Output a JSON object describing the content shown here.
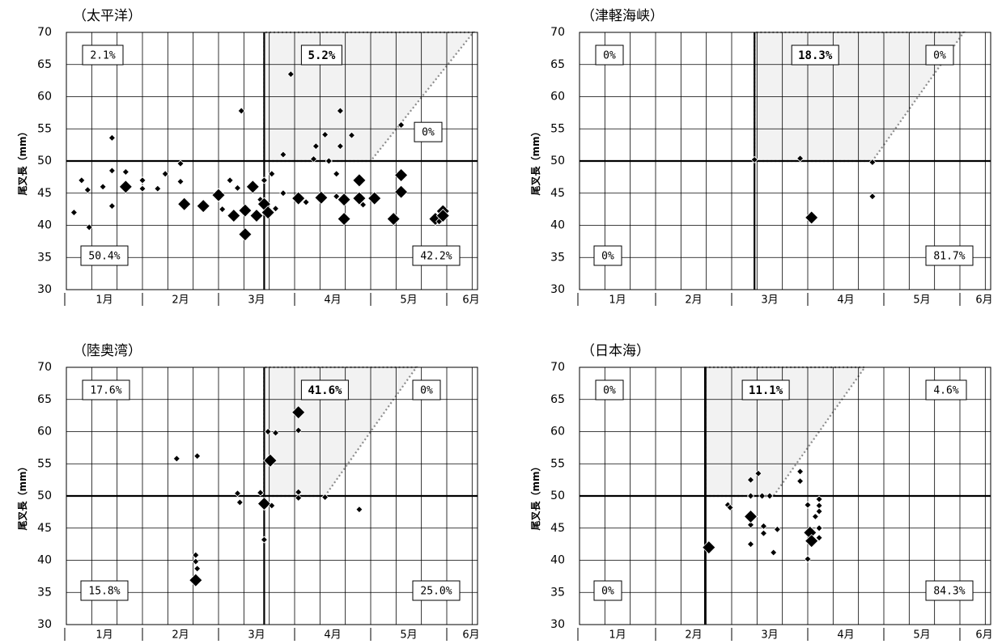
{
  "chart_data": [
    {
      "type": "scatter",
      "title": "（太平洋）",
      "ylabel": "尾叉長（mm）",
      "ylim": [
        30,
        70
      ],
      "yticks": [
        30,
        35,
        40,
        45,
        50,
        55,
        60,
        65,
        70
      ],
      "x_categories": [
        "1月",
        "2月",
        "3月",
        "4月",
        "5月",
        "6月"
      ],
      "xlim": [
        0,
        5.4
      ],
      "threshold_x": 2.6,
      "threshold_y": 50,
      "annotations": [
        {
          "text": "2.1%",
          "quadrant": "top-left",
          "bold": false
        },
        {
          "text": "5.2%",
          "quadrant": "top-middle",
          "bold": true
        },
        {
          "text": "0%",
          "quadrant": "top-right",
          "bold": false
        },
        {
          "text": "50.4%",
          "quadrant": "bottom-left",
          "bold": false
        },
        {
          "text": "42.2%",
          "quadrant": "bottom-right",
          "bold": false
        }
      ],
      "shaded_region": [
        [
          2.6,
          50
        ],
        [
          4.0,
          50
        ],
        [
          5.35,
          70
        ],
        [
          2.6,
          70
        ]
      ],
      "points": [
        {
          "x": 0.1,
          "y": 42.0,
          "s": 1
        },
        {
          "x": 0.2,
          "y": 47.0,
          "s": 1
        },
        {
          "x": 0.28,
          "y": 45.5,
          "s": 1
        },
        {
          "x": 0.3,
          "y": 39.7,
          "s": 1
        },
        {
          "x": 0.48,
          "y": 46.0,
          "s": 1
        },
        {
          "x": 0.6,
          "y": 53.6,
          "s": 1
        },
        {
          "x": 0.6,
          "y": 48.5,
          "s": 1
        },
        {
          "x": 0.6,
          "y": 43.0,
          "s": 1
        },
        {
          "x": 0.78,
          "y": 48.3,
          "s": 1
        },
        {
          "x": 0.78,
          "y": 46.0,
          "s": 2
        },
        {
          "x": 1.0,
          "y": 47.0,
          "s": 1
        },
        {
          "x": 1.0,
          "y": 45.7,
          "s": 1
        },
        {
          "x": 1.2,
          "y": 45.7,
          "s": 1
        },
        {
          "x": 1.3,
          "y": 48.0,
          "s": 1
        },
        {
          "x": 1.5,
          "y": 49.6,
          "s": 1
        },
        {
          "x": 1.5,
          "y": 46.8,
          "s": 1
        },
        {
          "x": 1.55,
          "y": 43.3,
          "s": 2
        },
        {
          "x": 1.8,
          "y": 43.0,
          "s": 2
        },
        {
          "x": 2.0,
          "y": 44.7,
          "s": 2
        },
        {
          "x": 2.05,
          "y": 42.5,
          "s": 1
        },
        {
          "x": 2.15,
          "y": 47.0,
          "s": 1
        },
        {
          "x": 2.2,
          "y": 41.5,
          "s": 2
        },
        {
          "x": 2.25,
          "y": 45.8,
          "s": 1
        },
        {
          "x": 2.3,
          "y": 57.8,
          "s": 1
        },
        {
          "x": 2.35,
          "y": 42.3,
          "s": 2
        },
        {
          "x": 2.35,
          "y": 38.6,
          "s": 2
        },
        {
          "x": 2.45,
          "y": 46.0,
          "s": 2
        },
        {
          "x": 2.5,
          "y": 41.5,
          "s": 2
        },
        {
          "x": 2.55,
          "y": 44.0,
          "s": 1
        },
        {
          "x": 2.6,
          "y": 43.3,
          "s": 2
        },
        {
          "x": 2.6,
          "y": 47.0,
          "s": 1
        },
        {
          "x": 2.65,
          "y": 42.0,
          "s": 2
        },
        {
          "x": 2.7,
          "y": 48.0,
          "s": 1
        },
        {
          "x": 2.75,
          "y": 42.6,
          "s": 1
        },
        {
          "x": 2.85,
          "y": 51.0,
          "s": 1
        },
        {
          "x": 2.85,
          "y": 45.0,
          "s": 1
        },
        {
          "x": 2.95,
          "y": 63.5,
          "s": 1
        },
        {
          "x": 3.05,
          "y": 44.2,
          "s": 2
        },
        {
          "x": 3.15,
          "y": 43.6,
          "s": 1
        },
        {
          "x": 3.25,
          "y": 50.3,
          "s": 1
        },
        {
          "x": 3.28,
          "y": 52.3,
          "s": 1
        },
        {
          "x": 3.35,
          "y": 44.3,
          "s": 2
        },
        {
          "x": 3.4,
          "y": 54.1,
          "s": 1
        },
        {
          "x": 3.45,
          "y": 50.0,
          "s": 1
        },
        {
          "x": 3.5,
          "y": 65.6,
          "s": 1
        },
        {
          "x": 3.55,
          "y": 48.0,
          "s": 1
        },
        {
          "x": 3.55,
          "y": 44.5,
          "s": 1
        },
        {
          "x": 3.6,
          "y": 52.3,
          "s": 1
        },
        {
          "x": 3.6,
          "y": 57.8,
          "s": 1
        },
        {
          "x": 3.65,
          "y": 44.0,
          "s": 2
        },
        {
          "x": 3.65,
          "y": 41.0,
          "s": 2
        },
        {
          "x": 3.75,
          "y": 54.0,
          "s": 1
        },
        {
          "x": 3.85,
          "y": 47.0,
          "s": 2
        },
        {
          "x": 3.85,
          "y": 44.2,
          "s": 2
        },
        {
          "x": 3.9,
          "y": 43.2,
          "s": 1
        },
        {
          "x": 4.05,
          "y": 44.2,
          "s": 2
        },
        {
          "x": 4.3,
          "y": 41.0,
          "s": 2
        },
        {
          "x": 4.4,
          "y": 47.8,
          "s": 2
        },
        {
          "x": 4.4,
          "y": 45.2,
          "s": 2
        },
        {
          "x": 4.4,
          "y": 55.6,
          "s": 1
        },
        {
          "x": 4.85,
          "y": 41.0,
          "s": 2
        },
        {
          "x": 4.9,
          "y": 40.6,
          "s": 1
        },
        {
          "x": 4.95,
          "y": 42.2,
          "s": 2
        },
        {
          "x": 4.95,
          "y": 41.5,
          "s": 2
        }
      ]
    },
    {
      "type": "scatter",
      "title": "（津軽海峡）",
      "ylabel": "尾叉長（mm）",
      "ylim": [
        30,
        70
      ],
      "yticks": [
        30,
        35,
        40,
        45,
        50,
        55,
        60,
        65,
        70
      ],
      "x_categories": [
        "1月",
        "2月",
        "3月",
        "4月",
        "5月",
        "6月"
      ],
      "xlim": [
        0,
        5.4
      ],
      "threshold_x": 2.3,
      "threshold_y": 50,
      "annotations": [
        {
          "text": "0%",
          "quadrant": "top-left",
          "bold": false
        },
        {
          "text": "18.3%",
          "quadrant": "top-middle",
          "bold": true
        },
        {
          "text": "0%",
          "quadrant": "top-right",
          "bold": false
        },
        {
          "text": "0%",
          "quadrant": "bottom-left",
          "bold": false
        },
        {
          "text": "81.7%",
          "quadrant": "bottom-right",
          "bold": false
        }
      ],
      "shaded_region": [
        [
          2.3,
          50
        ],
        [
          3.85,
          50
        ],
        [
          5.05,
          70
        ],
        [
          2.3,
          70
        ]
      ],
      "points": [
        {
          "x": 2.3,
          "y": 50.2,
          "s": 1
        },
        {
          "x": 2.9,
          "y": 50.4,
          "s": 1
        },
        {
          "x": 3.05,
          "y": 41.2,
          "s": 2
        },
        {
          "x": 3.85,
          "y": 49.8,
          "s": 1
        },
        {
          "x": 3.85,
          "y": 44.5,
          "s": 1
        }
      ]
    },
    {
      "type": "scatter",
      "title": "（陸奥湾）",
      "ylabel": "尾叉長（mm）",
      "ylim": [
        30,
        70
      ],
      "yticks": [
        30,
        35,
        40,
        45,
        50,
        55,
        60,
        65,
        70
      ],
      "x_categories": [
        "1月",
        "2月",
        "3月",
        "4月",
        "5月",
        "6月"
      ],
      "xlim": [
        0,
        5.4
      ],
      "threshold_x": 2.6,
      "threshold_y": 50,
      "annotations": [
        {
          "text": "17.6%",
          "quadrant": "top-left",
          "bold": false
        },
        {
          "text": "41.6%",
          "quadrant": "top-middle",
          "bold": true
        },
        {
          "text": "0%",
          "quadrant": "top-right",
          "bold": false
        },
        {
          "text": "15.8%",
          "quadrant": "bottom-left",
          "bold": false
        },
        {
          "text": "25.0%",
          "quadrant": "bottom-right",
          "bold": false
        }
      ],
      "shaded_region": [
        [
          2.6,
          50
        ],
        [
          3.4,
          50
        ],
        [
          4.6,
          70
        ],
        [
          2.6,
          70
        ]
      ],
      "points": [
        {
          "x": 1.45,
          "y": 55.8,
          "s": 1
        },
        {
          "x": 1.72,
          "y": 56.2,
          "s": 1
        },
        {
          "x": 1.7,
          "y": 40.8,
          "s": 1
        },
        {
          "x": 1.7,
          "y": 39.8,
          "s": 1
        },
        {
          "x": 1.72,
          "y": 38.7,
          "s": 1
        },
        {
          "x": 1.7,
          "y": 36.9,
          "s": 2
        },
        {
          "x": 2.25,
          "y": 50.4,
          "s": 1
        },
        {
          "x": 2.28,
          "y": 49.0,
          "s": 1
        },
        {
          "x": 2.55,
          "y": 50.5,
          "s": 1
        },
        {
          "x": 2.6,
          "y": 48.8,
          "s": 2
        },
        {
          "x": 2.6,
          "y": 43.2,
          "s": 1
        },
        {
          "x": 2.65,
          "y": 60.0,
          "s": 1
        },
        {
          "x": 2.68,
          "y": 55.5,
          "s": 2
        },
        {
          "x": 2.7,
          "y": 48.5,
          "s": 1
        },
        {
          "x": 2.75,
          "y": 59.8,
          "s": 1
        },
        {
          "x": 3.05,
          "y": 63.0,
          "s": 2
        },
        {
          "x": 3.05,
          "y": 60.2,
          "s": 1
        },
        {
          "x": 3.05,
          "y": 50.6,
          "s": 1
        },
        {
          "x": 3.05,
          "y": 49.7,
          "s": 1
        },
        {
          "x": 3.4,
          "y": 49.8,
          "s": 1
        },
        {
          "x": 3.85,
          "y": 47.9,
          "s": 1
        }
      ]
    },
    {
      "type": "scatter",
      "title": "（日本海）",
      "ylabel": "尾叉長（mm）",
      "ylim": [
        30,
        70
      ],
      "yticks": [
        30,
        35,
        40,
        45,
        50,
        55,
        60,
        65,
        70
      ],
      "x_categories": [
        "1月",
        "2月",
        "3月",
        "4月",
        "5月",
        "6月"
      ],
      "xlim": [
        0,
        5.4
      ],
      "threshold_x": 1.65,
      "threshold_y": 50,
      "annotations": [
        {
          "text": "0%",
          "quadrant": "top-left",
          "bold": false
        },
        {
          "text": "11.1%",
          "quadrant": "top-middle",
          "bold": true
        },
        {
          "text": "4.6%",
          "quadrant": "top-right",
          "bold": false
        },
        {
          "text": "0%",
          "quadrant": "bottom-left",
          "bold": false
        },
        {
          "text": "84.3%",
          "quadrant": "bottom-right",
          "bold": false
        }
      ],
      "shaded_region": [
        [
          1.65,
          50
        ],
        [
          2.55,
          50
        ],
        [
          3.75,
          70
        ],
        [
          1.65,
          70
        ]
      ],
      "points": [
        {
          "x": 1.7,
          "y": 42.0,
          "s": 2
        },
        {
          "x": 1.95,
          "y": 48.6,
          "s": 1
        },
        {
          "x": 1.98,
          "y": 48.2,
          "s": 1
        },
        {
          "x": 2.25,
          "y": 52.5,
          "s": 1
        },
        {
          "x": 2.25,
          "y": 50.0,
          "s": 1
        },
        {
          "x": 2.25,
          "y": 45.5,
          "s": 1
        },
        {
          "x": 2.25,
          "y": 46.8,
          "s": 2
        },
        {
          "x": 2.25,
          "y": 42.5,
          "s": 1
        },
        {
          "x": 2.35,
          "y": 53.5,
          "s": 1
        },
        {
          "x": 2.4,
          "y": 50.0,
          "s": 1
        },
        {
          "x": 2.42,
          "y": 45.3,
          "s": 1
        },
        {
          "x": 2.42,
          "y": 44.2,
          "s": 1
        },
        {
          "x": 2.5,
          "y": 50.0,
          "s": 1
        },
        {
          "x": 2.55,
          "y": 41.2,
          "s": 1
        },
        {
          "x": 2.6,
          "y": 44.8,
          "s": 1
        },
        {
          "x": 2.9,
          "y": 53.8,
          "s": 1
        },
        {
          "x": 2.9,
          "y": 52.3,
          "s": 1
        },
        {
          "x": 3.0,
          "y": 48.6,
          "s": 1
        },
        {
          "x": 3.0,
          "y": 40.2,
          "s": 1
        },
        {
          "x": 3.03,
          "y": 44.3,
          "s": 2
        },
        {
          "x": 3.05,
          "y": 43.0,
          "s": 2
        },
        {
          "x": 3.1,
          "y": 46.8,
          "s": 1
        },
        {
          "x": 3.15,
          "y": 49.5,
          "s": 1
        },
        {
          "x": 3.15,
          "y": 48.5,
          "s": 1
        },
        {
          "x": 3.15,
          "y": 47.6,
          "s": 1
        },
        {
          "x": 3.15,
          "y": 45.0,
          "s": 1
        },
        {
          "x": 3.15,
          "y": 43.5,
          "s": 1
        }
      ]
    }
  ]
}
